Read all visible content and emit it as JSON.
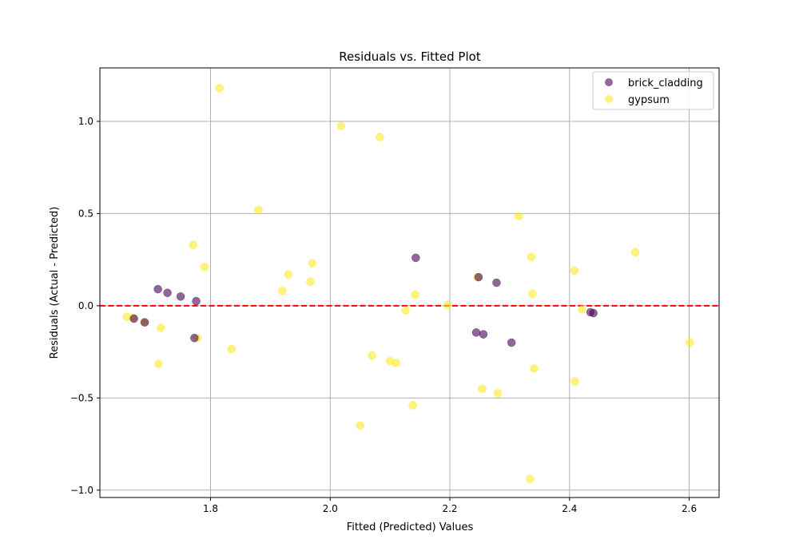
{
  "chart_data": {
    "type": "scatter",
    "title": "Residuals vs. Fitted Plot",
    "xlabel": "Fitted (Predicted) Values",
    "ylabel": "Residuals (Actual - Predicted)",
    "xlim": [
      1.615,
      2.65
    ],
    "ylim": [
      -1.04,
      1.29
    ],
    "xticks": [
      1.8,
      2.0,
      2.2,
      2.4,
      2.6
    ],
    "xtick_labels": [
      "1.8",
      "2.0",
      "2.2",
      "2.4",
      "2.6"
    ],
    "yticks": [
      -1.0,
      -0.5,
      0.0,
      0.5,
      1.0
    ],
    "ytick_labels": [
      "−1.0",
      "−0.5",
      "0.0",
      "0.5",
      "1.0"
    ],
    "grid": true,
    "legend_position": "top-right",
    "reference_line": {
      "y": 0.0,
      "color": "#ff0000",
      "style": "dashed"
    },
    "series": [
      {
        "name": "brick_cladding",
        "color": "#440154",
        "points": [
          {
            "x": 1.672,
            "y": -0.07
          },
          {
            "x": 1.69,
            "y": -0.09
          },
          {
            "x": 1.712,
            "y": 0.09
          },
          {
            "x": 1.728,
            "y": 0.07
          },
          {
            "x": 1.75,
            "y": 0.05
          },
          {
            "x": 1.773,
            "y": -0.175
          },
          {
            "x": 1.776,
            "y": 0.025
          },
          {
            "x": 2.143,
            "y": 0.26
          },
          {
            "x": 2.244,
            "y": -0.145
          },
          {
            "x": 2.248,
            "y": 0.155
          },
          {
            "x": 2.256,
            "y": -0.155
          },
          {
            "x": 2.278,
            "y": 0.125
          },
          {
            "x": 2.303,
            "y": -0.2
          },
          {
            "x": 2.435,
            "y": -0.035
          },
          {
            "x": 2.44,
            "y": -0.04
          }
        ]
      },
      {
        "name": "gypsum",
        "color": "#fde725",
        "points": [
          {
            "x": 1.66,
            "y": -0.06
          },
          {
            "x": 1.67,
            "y": -0.065
          },
          {
            "x": 1.689,
            "y": -0.09
          },
          {
            "x": 1.713,
            "y": -0.315
          },
          {
            "x": 1.717,
            "y": -0.12
          },
          {
            "x": 1.771,
            "y": 0.33
          },
          {
            "x": 1.778,
            "y": -0.175
          },
          {
            "x": 1.79,
            "y": 0.21
          },
          {
            "x": 1.815,
            "y": 1.18
          },
          {
            "x": 1.835,
            "y": -0.235
          },
          {
            "x": 1.88,
            "y": 0.52
          },
          {
            "x": 1.92,
            "y": 0.08
          },
          {
            "x": 1.93,
            "y": 0.17
          },
          {
            "x": 1.967,
            "y": 0.13
          },
          {
            "x": 1.97,
            "y": 0.23
          },
          {
            "x": 2.018,
            "y": 0.975
          },
          {
            "x": 2.05,
            "y": -0.65
          },
          {
            "x": 2.07,
            "y": -0.27
          },
          {
            "x": 2.083,
            "y": 0.915
          },
          {
            "x": 2.1,
            "y": -0.3
          },
          {
            "x": 2.11,
            "y": -0.31
          },
          {
            "x": 2.126,
            "y": -0.025
          },
          {
            "x": 2.138,
            "y": -0.54
          },
          {
            "x": 2.142,
            "y": 0.06
          },
          {
            "x": 2.196,
            "y": 0.005
          },
          {
            "x": 2.246,
            "y": 0.155
          },
          {
            "x": 2.254,
            "y": -0.45
          },
          {
            "x": 2.28,
            "y": -0.475
          },
          {
            "x": 2.315,
            "y": 0.485
          },
          {
            "x": 2.334,
            "y": -0.94
          },
          {
            "x": 2.336,
            "y": 0.265
          },
          {
            "x": 2.338,
            "y": 0.065
          },
          {
            "x": 2.341,
            "y": -0.34
          },
          {
            "x": 2.408,
            "y": 0.19
          },
          {
            "x": 2.409,
            "y": -0.41
          },
          {
            "x": 2.421,
            "y": -0.02
          },
          {
            "x": 2.51,
            "y": 0.29
          },
          {
            "x": 2.601,
            "y": -0.2
          }
        ]
      }
    ]
  }
}
